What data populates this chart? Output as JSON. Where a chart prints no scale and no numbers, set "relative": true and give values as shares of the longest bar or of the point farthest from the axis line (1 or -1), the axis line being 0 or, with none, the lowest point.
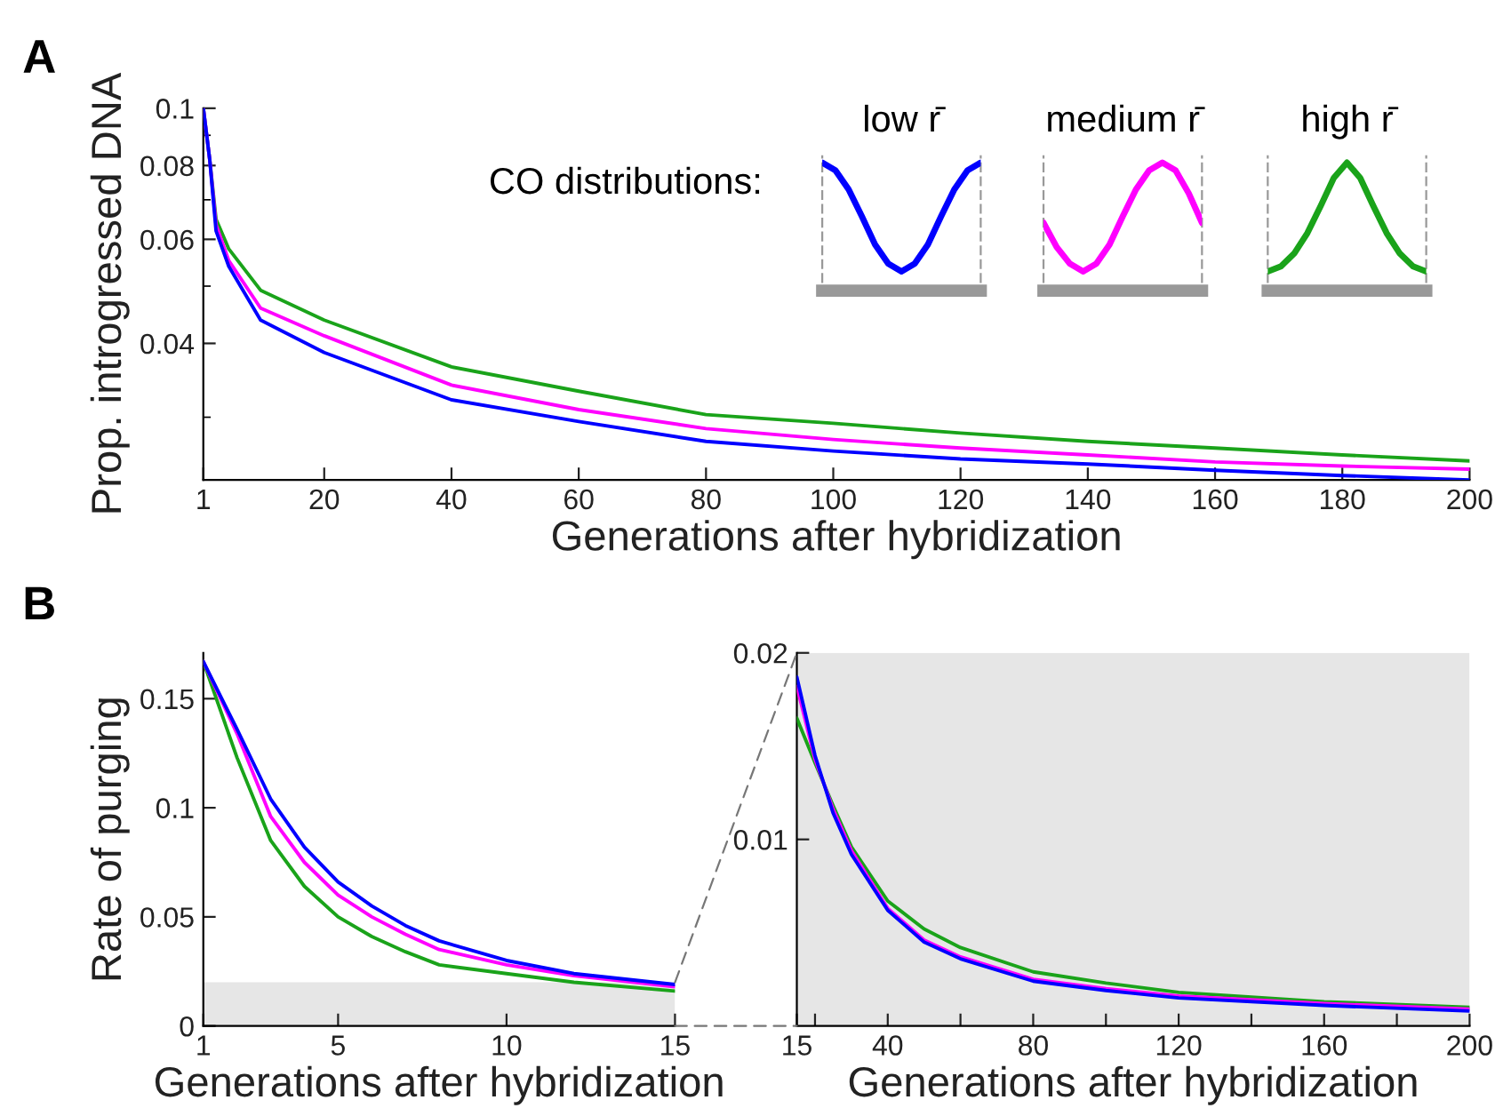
{
  "chart_data": [
    {
      "type": "line",
      "xlabel": "Generations after hybridization",
      "ylabel": "Prop. introgressed DNA",
      "log": "y",
      "xlim": [
        1,
        200
      ],
      "xticks": [
        1,
        20,
        40,
        60,
        80,
        100,
        120,
        140,
        160,
        180,
        200
      ],
      "ylim": [
        0.0235,
        0.1
      ],
      "yticks": [
        0.04,
        0.06,
        0.08,
        0.1
      ],
      "grid": false,
      "legend": false,
      "x": [
        1,
        2,
        3,
        5,
        10,
        20,
        40,
        60,
        80,
        100,
        120,
        140,
        160,
        180,
        200
      ],
      "series": [
        {
          "color": "#0000ff",
          "values": [
            0.1,
            0.082,
            0.062,
            0.054,
            0.0438,
            0.0386,
            0.0321,
            0.0295,
            0.0273,
            0.0263,
            0.0255,
            0.025,
            0.0244,
            0.0239,
            0.0235
          ]
        },
        {
          "color": "#ff00ff",
          "values": [
            0.1,
            0.082,
            0.0635,
            0.0552,
            0.0459,
            0.0412,
            0.034,
            0.0309,
            0.0287,
            0.0275,
            0.0266,
            0.0259,
            0.0252,
            0.0248,
            0.0245
          ]
        },
        {
          "color": "#1aa31a",
          "values": [
            0.1,
            0.082,
            0.0649,
            0.0578,
            0.0492,
            0.0438,
            0.0365,
            0.0332,
            0.0303,
            0.0293,
            0.0282,
            0.0273,
            0.0266,
            0.0259,
            0.0253
          ]
        }
      ],
      "annotations": [
        "A",
        "CO distributions:"
      ]
    },
    {
      "type": "line",
      "xlabel": "Generations after hybridization",
      "ylabel": "Rate of purging",
      "xlim": [
        1,
        15
      ],
      "xticks": [
        1,
        5,
        10,
        15
      ],
      "ylim": [
        0,
        0.171
      ],
      "yticks": [
        0,
        0.05,
        0.1,
        0.15
      ],
      "grid": false,
      "legend": false,
      "x": [
        1,
        2,
        3,
        4,
        5,
        6,
        7,
        8,
        10,
        12,
        15
      ],
      "series": [
        {
          "color": "#0000ff",
          "values": [
            0.167,
            0.136,
            0.104,
            0.082,
            0.066,
            0.055,
            0.046,
            0.039,
            0.03,
            0.024,
            0.019
          ]
        },
        {
          "color": "#ff00ff",
          "values": [
            0.167,
            0.134,
            0.096,
            0.075,
            0.06,
            0.05,
            0.042,
            0.035,
            0.028,
            0.023,
            0.018
          ]
        },
        {
          "color": "#1aa31a",
          "values": [
            0.167,
            0.123,
            0.085,
            0.064,
            0.05,
            0.041,
            0.034,
            0.028,
            0.024,
            0.02,
            0.016
          ]
        }
      ],
      "bands": [
        {
          "axis": "y",
          "from": 0,
          "to": 0.02,
          "color": "#e6e6e6"
        }
      ],
      "annotations": [
        "B"
      ]
    },
    {
      "type": "line",
      "xlabel": "Generations after hybridization",
      "xlim": [
        15,
        200
      ],
      "xticks": [
        15,
        {
          "value": 20,
          "label": null
        },
        40,
        {
          "value": 60,
          "label": null
        },
        80,
        {
          "value": 100,
          "label": null
        },
        120,
        {
          "value": 140,
          "label": null
        },
        160,
        {
          "value": 180,
          "label": null
        },
        200
      ],
      "ylim": [
        0,
        0.02
      ],
      "yticks": [
        0.01,
        0.02
      ],
      "grid": false,
      "legend": false,
      "x": [
        15,
        20,
        25,
        30,
        40,
        50,
        60,
        80,
        100,
        120,
        160,
        200
      ],
      "series": [
        {
          "color": "#0000ff",
          "values": [
            0.0187,
            0.0145,
            0.0114,
            0.0092,
            0.0062,
            0.0045,
            0.0036,
            0.0024,
            0.0019,
            0.0015,
            0.0011,
            0.0008
          ]
        },
        {
          "color": "#ff00ff",
          "values": [
            0.0182,
            0.0143,
            0.0116,
            0.0094,
            0.0063,
            0.0046,
            0.0037,
            0.0025,
            0.002,
            0.0016,
            0.0012,
            0.0009
          ]
        },
        {
          "color": "#1aa31a",
          "values": [
            0.0165,
            0.0141,
            0.0118,
            0.0096,
            0.0067,
            0.0052,
            0.0042,
            0.0029,
            0.0023,
            0.0018,
            0.0013,
            0.001
          ]
        }
      ],
      "bands": [
        {
          "axis": "y",
          "from": 0,
          "to": 0.02,
          "color": "#e6e6e6"
        }
      ]
    },
    {
      "type": "line",
      "relative": true,
      "title": "low r̄",
      "categories": [
        null,
        null,
        null,
        null,
        null,
        null,
        null,
        null,
        null,
        null,
        null,
        null,
        null
      ],
      "series": [
        {
          "color": "#0000ff",
          "values": [
            1,
            0.94,
            0.79,
            0.58,
            0.36,
            0.21,
            0.15,
            0.21,
            0.36,
            0.58,
            0.79,
            0.94,
            1
          ]
        }
      ]
    },
    {
      "type": "line",
      "relative": true,
      "title": "medium r̄",
      "categories": [
        null,
        null,
        null,
        null,
        null,
        null,
        null,
        null,
        null,
        null,
        null,
        null,
        null
      ],
      "series": [
        {
          "color": "#ff00ff",
          "values": [
            0.53,
            0.34,
            0.21,
            0.15,
            0.21,
            0.36,
            0.58,
            0.79,
            0.94,
            1,
            0.94,
            0.76,
            0.53
          ]
        }
      ]
    },
    {
      "type": "line",
      "relative": true,
      "title": "high r̄",
      "categories": [
        null,
        null,
        null,
        null,
        null,
        null,
        null,
        null,
        null,
        null,
        null,
        null,
        null
      ],
      "series": [
        {
          "color": "#1aa31a",
          "values": [
            0.15,
            0.19,
            0.29,
            0.45,
            0.66,
            0.88,
            1,
            0.88,
            0.66,
            0.45,
            0.29,
            0.19,
            0.15
          ]
        }
      ]
    }
  ]
}
